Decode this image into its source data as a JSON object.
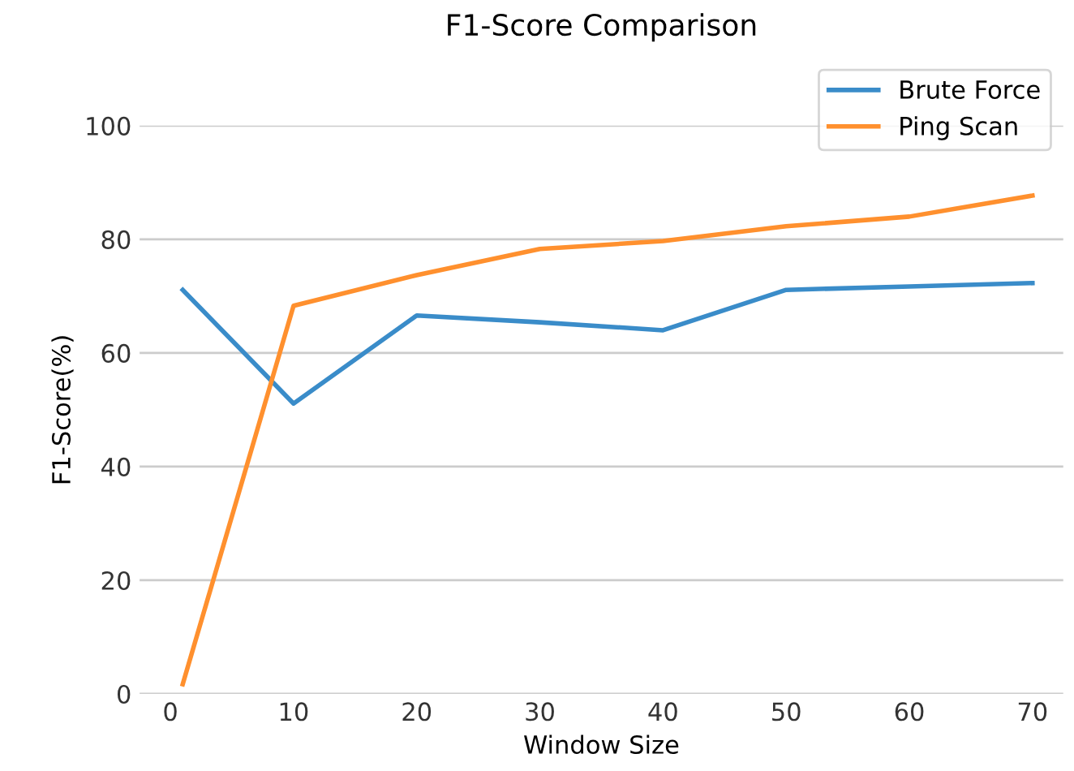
{
  "chart_data": {
    "type": "line",
    "title": "F1-Score Comparison",
    "xlabel": "Window Size",
    "ylabel": "F1-Score(%)",
    "x": [
      1,
      10,
      20,
      30,
      40,
      50,
      60,
      70
    ],
    "series": [
      {
        "name": "Brute Force",
        "color": "#3a8cc9",
        "values": [
          71.1,
          51.1,
          66.6,
          65.4,
          64.0,
          71.1,
          71.7,
          72.3
        ]
      },
      {
        "name": "Ping Scan",
        "color": "#ff902e",
        "values": [
          1.7,
          68.3,
          73.7,
          78.3,
          79.7,
          82.3,
          84.0,
          87.7
        ]
      }
    ],
    "xlim": [
      -2.5,
      72.5
    ],
    "ylim": [
      0,
      100
    ],
    "xticks": [
      0,
      10,
      20,
      30,
      40,
      50,
      60,
      70
    ],
    "yticks": [
      0,
      20,
      40,
      60,
      80,
      100
    ],
    "grid": "y",
    "legend": "top right"
  }
}
